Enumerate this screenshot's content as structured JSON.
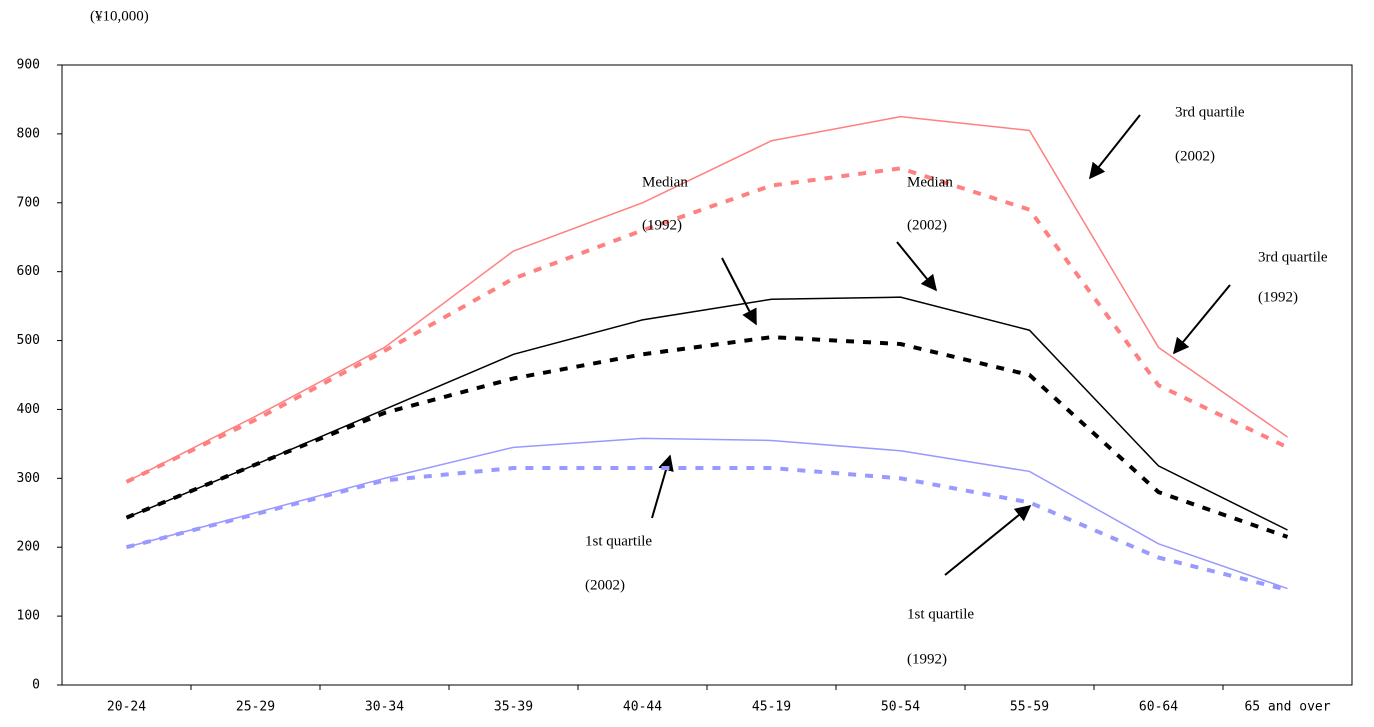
{
  "chart_data": {
    "type": "line",
    "unit_label": "(¥10,000)",
    "categories": [
      "20-24",
      "25-29",
      "30-34",
      "35-39",
      "40-44",
      "45-19",
      "50-54",
      "55-59",
      "60-64",
      "65 and over"
    ],
    "ylim": [
      0,
      900
    ],
    "yticks": [
      0,
      100,
      200,
      300,
      400,
      500,
      600,
      700,
      800,
      900
    ],
    "grid": false,
    "series": [
      {
        "color": "#ff8080",
        "dashed": false,
        "values": [
          295,
          390,
          490,
          630,
          700,
          790,
          825,
          805,
          490,
          360
        ]
      },
      {
        "color": "#ff8080",
        "dashed": true,
        "values": [
          295,
          385,
          485,
          590,
          660,
          725,
          750,
          690,
          435,
          345
        ]
      },
      {
        "color": "#000000",
        "dashed": false,
        "values": [
          243,
          320,
          400,
          480,
          530,
          560,
          563,
          515,
          318,
          225
        ]
      },
      {
        "color": "#000000",
        "dashed": true,
        "values": [
          243,
          320,
          395,
          445,
          480,
          505,
          495,
          450,
          280,
          215
        ]
      },
      {
        "color": "#9999ff",
        "dashed": false,
        "values": [
          200,
          250,
          300,
          345,
          358,
          355,
          340,
          310,
          205,
          140
        ]
      },
      {
        "color": "#9999ff",
        "dashed": true,
        "values": [
          200,
          248,
          297,
          315,
          315,
          315,
          300,
          265,
          185,
          138
        ]
      }
    ],
    "annotations": [
      {
        "lines": [
          "3rd  quartile",
          "(2002)"
        ]
      },
      {
        "lines": [
          "Median",
          "(1992)"
        ]
      },
      {
        "lines": [
          "Median",
          "(2002)"
        ]
      },
      {
        "lines": [
          "3rd quartile",
          "(1992)"
        ]
      },
      {
        "lines": [
          "1st quartile",
          "(2002)"
        ]
      },
      {
        "lines": [
          "1st quartile",
          "(1992)"
        ]
      }
    ]
  }
}
